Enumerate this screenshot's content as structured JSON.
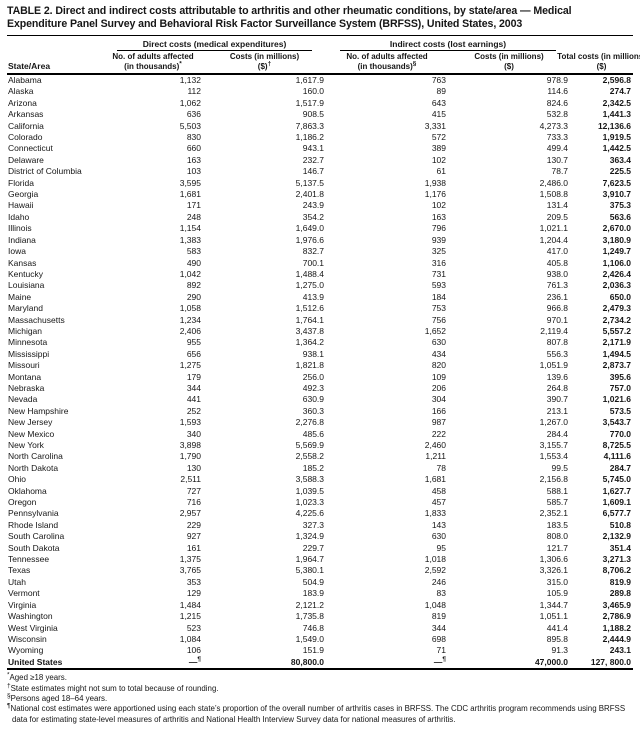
{
  "title": "TABLE 2. Direct and indirect costs attributable to arthritis and other rheumatic conditions, by state/area — Medical Expenditure Panel Survey and Behavioral Risk Factor Surveillance System (BRFSS), United States, 2003",
  "table": {
    "group_headers": {
      "direct": "Direct costs (medical expenditures)",
      "indirect": "Indirect costs (lost earnings)"
    },
    "columns": [
      {
        "label": "State/Area",
        "line1": "State/Area",
        "line2": "",
        "sup": ""
      },
      {
        "line1": "No. of adults affected",
        "line2": "(in thousands)",
        "sup": "*"
      },
      {
        "line1": "Costs (in millions)",
        "line2": "($)",
        "sup": "†"
      },
      {
        "line1": "No. of adults affected",
        "line2": "(in thousands)",
        "sup": "§"
      },
      {
        "line1": "Costs (in millions)",
        "line2": "($)",
        "sup": ""
      },
      {
        "line1": "Total costs (in millions)",
        "line2": "($)",
        "sup": ""
      }
    ],
    "rows": [
      [
        "Alabama",
        "1,132",
        "1,617.9",
        "763",
        "978.9",
        "2,596.8"
      ],
      [
        "Alaska",
        "112",
        "160.0",
        "89",
        "114.6",
        "274.7"
      ],
      [
        "Arizona",
        "1,062",
        "1,517.9",
        "643",
        "824.6",
        "2,342.5"
      ],
      [
        "Arkansas",
        "636",
        "908.5",
        "415",
        "532.8",
        "1,441.3"
      ],
      [
        "California",
        "5,503",
        "7,863.3",
        "3,331",
        "4,273.3",
        "12,136.6"
      ],
      [
        "Colorado",
        "830",
        "1,186.2",
        "572",
        "733.3",
        "1,919.5"
      ],
      [
        "Connecticut",
        "660",
        "943.1",
        "389",
        "499.4",
        "1,442.5"
      ],
      [
        "Delaware",
        "163",
        "232.7",
        "102",
        "130.7",
        "363.4"
      ],
      [
        "District of Columbia",
        "103",
        "146.7",
        "61",
        "78.7",
        "225.5"
      ],
      [
        "Florida",
        "3,595",
        "5,137.5",
        "1,938",
        "2,486.0",
        "7,623.5"
      ],
      [
        "Georgia",
        "1,681",
        "2,401.8",
        "1,176",
        "1,508.8",
        "3,910.7"
      ],
      [
        "Hawaii",
        "171",
        "243.9",
        "102",
        "131.4",
        "375.3"
      ],
      [
        "Idaho",
        "248",
        "354.2",
        "163",
        "209.5",
        "563.6"
      ],
      [
        "Illinois",
        "1,154",
        "1,649.0",
        "796",
        "1,021.1",
        "2,670.0"
      ],
      [
        "Indiana",
        "1,383",
        "1,976.6",
        "939",
        "1,204.4",
        "3,180.9"
      ],
      [
        "Iowa",
        "583",
        "832.7",
        "325",
        "417.0",
        "1,249.7"
      ],
      [
        "Kansas",
        "490",
        "700.1",
        "316",
        "405.8",
        "1,106.0"
      ],
      [
        "Kentucky",
        "1,042",
        "1,488.4",
        "731",
        "938.0",
        "2,426.4"
      ],
      [
        "Louisiana",
        "892",
        "1,275.0",
        "593",
        "761.3",
        "2,036.3"
      ],
      [
        "Maine",
        "290",
        "413.9",
        "184",
        "236.1",
        "650.0"
      ],
      [
        "Maryland",
        "1,058",
        "1,512.6",
        "753",
        "966.8",
        "2,479.3"
      ],
      [
        "Massachusetts",
        "1,234",
        "1,764.1",
        "756",
        "970.1",
        "2,734.2"
      ],
      [
        "Michigan",
        "2,406",
        "3,437.8",
        "1,652",
        "2,119.4",
        "5,557.2"
      ],
      [
        "Minnesota",
        "955",
        "1,364.2",
        "630",
        "807.8",
        "2,171.9"
      ],
      [
        "Mississippi",
        "656",
        "938.1",
        "434",
        "556.3",
        "1,494.5"
      ],
      [
        "Missouri",
        "1,275",
        "1,821.8",
        "820",
        "1,051.9",
        "2,873.7"
      ],
      [
        "Montana",
        "179",
        "256.0",
        "109",
        "139.6",
        "395.6"
      ],
      [
        "Nebraska",
        "344",
        "492.3",
        "206",
        "264.8",
        "757.0"
      ],
      [
        "Nevada",
        "441",
        "630.9",
        "304",
        "390.7",
        "1,021.6"
      ],
      [
        "New Hampshire",
        "252",
        "360.3",
        "166",
        "213.1",
        "573.5"
      ],
      [
        "New Jersey",
        "1,593",
        "2,276.8",
        "987",
        "1,267.0",
        "3,543.7"
      ],
      [
        "New Mexico",
        "340",
        "485.6",
        "222",
        "284.4",
        "770.0"
      ],
      [
        "New York",
        "3,898",
        "5,569.9",
        "2,460",
        "3,155.7",
        "8,725.5"
      ],
      [
        "North Carolina",
        "1,790",
        "2,558.2",
        "1,211",
        "1,553.4",
        "4,111.6"
      ],
      [
        "North Dakota",
        "130",
        "185.2",
        "78",
        "99.5",
        "284.7"
      ],
      [
        "Ohio",
        "2,511",
        "3,588.3",
        "1,681",
        "2,156.8",
        "5,745.0"
      ],
      [
        "Oklahoma",
        "727",
        "1,039.5",
        "458",
        "588.1",
        "1,627.7"
      ],
      [
        "Oregon",
        "716",
        "1,023.3",
        "457",
        "585.7",
        "1,609.1"
      ],
      [
        "Pennsylvania",
        "2,957",
        "4,225.6",
        "1,833",
        "2,352.1",
        "6,577.7"
      ],
      [
        "Rhode Island",
        "229",
        "327.3",
        "143",
        "183.5",
        "510.8"
      ],
      [
        "South Carolina",
        "927",
        "1,324.9",
        "630",
        "808.0",
        "2,132.9"
      ],
      [
        "South Dakota",
        "161",
        "229.7",
        "95",
        "121.7",
        "351.4"
      ],
      [
        "Tennessee",
        "1,375",
        "1,964.7",
        "1,018",
        "1,306.6",
        "3,271.3"
      ],
      [
        "Texas",
        "3,765",
        "5,380.1",
        "2,592",
        "3,326.1",
        "8,706.2"
      ],
      [
        "Utah",
        "353",
        "504.9",
        "246",
        "315.0",
        "819.9"
      ],
      [
        "Vermont",
        "129",
        "183.9",
        "83",
        "105.9",
        "289.8"
      ],
      [
        "Virginia",
        "1,484",
        "2,121.2",
        "1,048",
        "1,344.7",
        "3,465.9"
      ],
      [
        "Washington",
        "1,215",
        "1,735.8",
        "819",
        "1,051.1",
        "2,786.9"
      ],
      [
        "West Virginia",
        "523",
        "746.8",
        "344",
        "441.4",
        "1,188.2"
      ],
      [
        "Wisconsin",
        "1,084",
        "1,549.0",
        "698",
        "895.8",
        "2,444.9"
      ],
      [
        "Wyoming",
        "106",
        "151.9",
        "71",
        "91.3",
        "243.1"
      ]
    ],
    "total_row": [
      "United States",
      "—¶",
      "80,800.0",
      "—¶",
      "47,000.0",
      "127, 800.0"
    ]
  },
  "footnotes": [
    {
      "symbol": "*",
      "text": "Aged ≥18 years."
    },
    {
      "symbol": "†",
      "text": "State estimates might not sum to total because of rounding."
    },
    {
      "symbol": "§",
      "text": "Persons aged 18–64 years."
    },
    {
      "symbol": "¶",
      "text": "National cost estimates were apportioned using each state’s proportion of the overall number of arthritis cases in BRFSS. The CDC arthritis program recommends using BRFSS data for estimating state-level measures of arthritis and National Health Interview Survey data for national measures of arthritis."
    }
  ]
}
